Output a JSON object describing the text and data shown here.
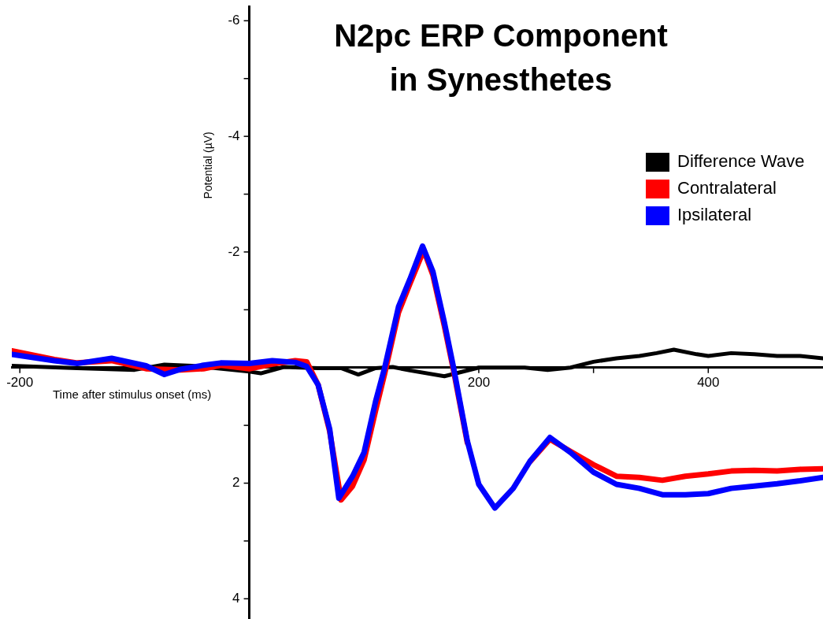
{
  "chart_data": {
    "type": "line",
    "title": "N2pc ERP Component\nin Synesthetes",
    "xlabel": "Time after stimulus onset (ms)",
    "ylabel": "Potential (µV)",
    "xlim": [
      -207,
      500
    ],
    "xticks": [
      -200,
      {
        "value": 200,
        "label": "200"
      },
      {
        "value": 300,
        "label": null
      },
      400
    ],
    "ylim": [
      4.35,
      -6.25
    ],
    "yticks": [
      -6,
      {
        "value": -5,
        "label": null
      },
      -4,
      {
        "value": -3,
        "label": null
      },
      -2,
      {
        "value": -1,
        "label": null
      },
      {
        "value": 1,
        "label": null
      },
      2,
      {
        "value": 3,
        "label": null
      },
      4
    ],
    "legend": "top right",
    "grid": false,
    "marker": "none",
    "line_style": "solid",
    "series": [
      {
        "name": "Difference Wave",
        "color": "#000000",
        "x": [
          -207,
          -150,
          -100,
          -74,
          -50,
          0,
          10,
          30,
          60,
          80,
          95,
          110,
          125,
          140,
          170,
          200,
          240,
          260,
          280,
          300,
          320,
          340,
          355,
          370,
          390,
          400,
          420,
          440,
          460,
          480,
          500
        ],
        "values": [
          -0.03,
          0.01,
          0.04,
          -0.05,
          -0.03,
          0.07,
          0.1,
          -0.01,
          0.01,
          0.01,
          0.12,
          0.01,
          -0.01,
          0.05,
          0.15,
          0.0,
          0.0,
          0.04,
          0.0,
          -0.1,
          -0.16,
          -0.2,
          -0.25,
          -0.31,
          -0.23,
          -0.2,
          -0.25,
          -0.23,
          -0.2,
          -0.2,
          -0.16
        ]
      },
      {
        "name": "Contralateral",
        "color": "#ff0000",
        "x": [
          -207,
          -170,
          -150,
          -120,
          -90,
          -60,
          -40,
          -25,
          0,
          20,
          40,
          50,
          60,
          70,
          80,
          90,
          100,
          110,
          118,
          130,
          140,
          152,
          160,
          170,
          178,
          190,
          200,
          214,
          230,
          245,
          262,
          280,
          300,
          320,
          340,
          360,
          380,
          400,
          420,
          440,
          460,
          480,
          500
        ],
        "values": [
          -0.29,
          -0.14,
          -0.08,
          -0.12,
          0.02,
          0.04,
          0.02,
          -0.04,
          0.02,
          -0.06,
          -0.12,
          -0.1,
          0.3,
          1.1,
          2.29,
          2.05,
          1.6,
          0.75,
          0.1,
          -0.95,
          -1.45,
          -2.03,
          -1.6,
          -0.72,
          0.05,
          1.3,
          null,
          null,
          null,
          1.62,
          1.24,
          1.45,
          1.68,
          1.88,
          1.9,
          1.95,
          1.88,
          1.84,
          1.79,
          1.78,
          1.79,
          1.76,
          1.75
        ]
      },
      {
        "name": "Ipsilateral",
        "color": "#0000ff",
        "x": [
          -207,
          -170,
          -150,
          -120,
          -90,
          -74,
          -60,
          -40,
          -25,
          0,
          20,
          40,
          50,
          60,
          70,
          78,
          90,
          100,
          110,
          118,
          130,
          140,
          151,
          160,
          170,
          178,
          190,
          200,
          214,
          230,
          245,
          262,
          280,
          300,
          320,
          340,
          360,
          380,
          400,
          420,
          440,
          460,
          480,
          500
        ],
        "values": [
          -0.23,
          -0.12,
          -0.07,
          -0.16,
          -0.03,
          0.12,
          0.03,
          -0.04,
          -0.08,
          -0.07,
          -0.12,
          -0.09,
          -0.02,
          0.3,
          1.06,
          2.26,
          1.88,
          1.47,
          0.59,
          0.0,
          -1.05,
          -1.53,
          -2.1,
          -1.66,
          -0.78,
          0.0,
          1.27,
          2.02,
          2.43,
          2.09,
          1.61,
          1.21,
          1.47,
          1.81,
          2.02,
          2.09,
          2.2,
          2.2,
          2.18,
          2.09,
          2.05,
          2.01,
          1.96,
          1.9
        ]
      }
    ]
  }
}
